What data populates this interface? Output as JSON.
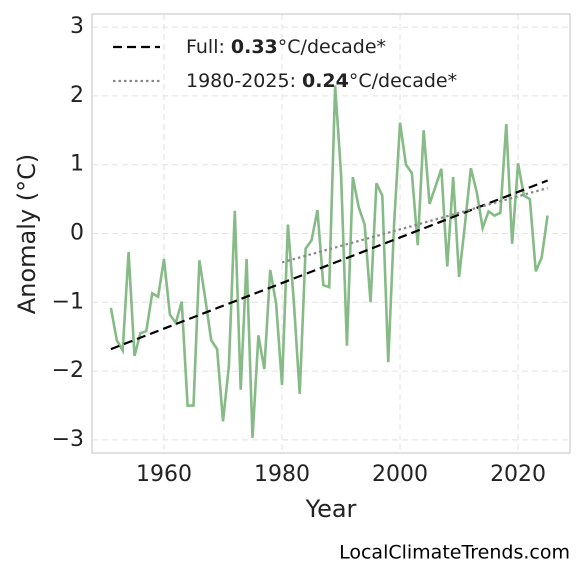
{
  "chart_data": {
    "type": "line",
    "x_label": "Year",
    "y_label": "Anomaly (°C)",
    "source": "LocalClimateTrends.com",
    "xlim": [
      1947.8,
      2028.8
    ],
    "ylim": [
      -3.19,
      3.19
    ],
    "xticks": [
      1960,
      1980,
      2000,
      2020
    ],
    "yticks": [
      {
        "value": -3,
        "label": "−3"
      },
      {
        "value": -2,
        "label": "−2"
      },
      {
        "value": -1,
        "label": "−1"
      },
      0,
      1,
      2,
      3
    ],
    "grid": true,
    "legend": "upper left",
    "x": [
      1951,
      1952,
      1953,
      1954,
      1955,
      1956,
      1957,
      1958,
      1959,
      1960,
      1961,
      1962,
      1963,
      1964,
      1965,
      1966,
      1967,
      1968,
      1969,
      1970,
      1971,
      1972,
      1973,
      1974,
      1975,
      1976,
      1977,
      1978,
      1979,
      1980,
      1981,
      1982,
      1983,
      1984,
      1985,
      1986,
      1987,
      1988,
      1989,
      1990,
      1991,
      1992,
      1993,
      1994,
      1995,
      1996,
      1997,
      1998,
      1999,
      2000,
      2001,
      2002,
      2003,
      2004,
      2005,
      2006,
      2007,
      2008,
      2009,
      2010,
      2011,
      2012,
      2013,
      2014,
      2015,
      2016,
      2017,
      2018,
      2019,
      2020,
      2021,
      2022,
      2023,
      2024,
      2025
    ],
    "series": [
      {
        "color": "#86ba86",
        "values": [
          -1.08,
          -1.55,
          -1.7,
          -0.27,
          -1.78,
          -1.45,
          -1.42,
          -0.87,
          -0.92,
          -0.37,
          -1.18,
          -1.3,
          -0.99,
          -2.5,
          -2.5,
          -0.39,
          -0.95,
          -1.55,
          -1.68,
          -2.73,
          -1.92,
          0.33,
          -2.27,
          -0.37,
          -2.97,
          -1.48,
          -1.97,
          -0.53,
          -1.02,
          -2.2,
          0.13,
          -0.99,
          -2.33,
          -0.22,
          -0.1,
          0.34,
          -0.75,
          -0.78,
          2.15,
          0.87,
          -1.63,
          0.82,
          0.38,
          0.13,
          -1.0,
          0.73,
          0.55,
          -1.87,
          0.15,
          1.61,
          1.0,
          0.88,
          -0.17,
          1.5,
          0.43,
          0.68,
          0.94,
          -0.48,
          0.82,
          -0.63,
          0.13,
          0.95,
          0.6,
          0.08,
          0.32,
          0.26,
          0.3,
          1.59,
          -0.15,
          1.02,
          0.55,
          0.5,
          -0.55,
          -0.35,
          0.26
        ]
      },
      {
        "name": "Full:",
        "slope": 0.33,
        "name_suffix": "°C/decade*",
        "color": "#000000",
        "dash": "9 5",
        "x": [
          1951,
          2025
        ],
        "values": [
          -1.68,
          0.77
        ]
      },
      {
        "name": "1980-2025:",
        "slope": 0.24,
        "name_suffix": "°C/decade*",
        "color": "#888888",
        "dash": "2.5 3",
        "x": [
          1980,
          2025
        ],
        "values": [
          -0.42,
          0.66
        ]
      }
    ]
  }
}
